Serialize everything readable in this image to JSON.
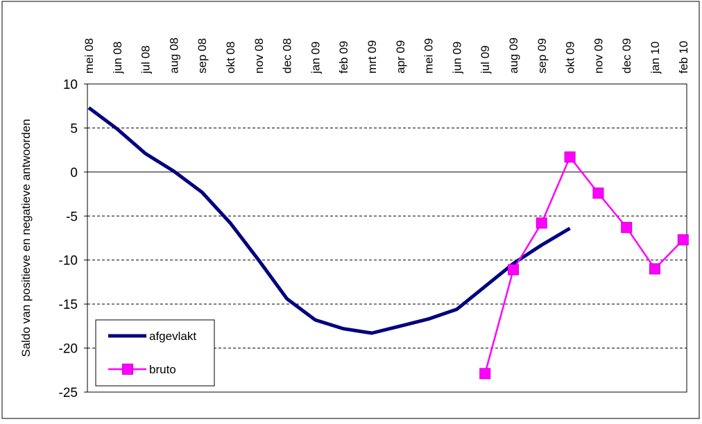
{
  "chart_data": {
    "type": "line",
    "title": "",
    "xlabel": "",
    "ylabel": "Saldo van positieve en negatieve antwoorden",
    "ylim": [
      -25,
      10
    ],
    "yticks": [
      10,
      5,
      0,
      -5,
      -10,
      -15,
      -20,
      -25
    ],
    "grid": "horizontal-dashed",
    "legend_position": "bottom-left",
    "categories": [
      "mei 08",
      "jun 08",
      "jul 08",
      "aug 08",
      "sep 08",
      "okt 08",
      "nov 08",
      "dec 08",
      "jan 09",
      "feb 09",
      "mrt 09",
      "apr 09",
      "mei 09",
      "jun 09",
      "jul 09",
      "aug 09",
      "sep 09",
      "okt 09",
      "nov 09",
      "dec 09",
      "jan 10",
      "feb 10"
    ],
    "series": [
      {
        "name": "afgevlakt",
        "color": "#000080",
        "marker": "none",
        "values": [
          7.3,
          4.9,
          2.1,
          0.1,
          -2.3,
          -5.8,
          -10.0,
          -14.4,
          -16.8,
          -17.8,
          -18.3,
          -17.5,
          -16.7,
          -15.6,
          -13.0,
          -10.4,
          -8.3,
          -6.4,
          null,
          null,
          null,
          null
        ]
      },
      {
        "name": "bruto",
        "color": "#FF00FF",
        "marker": "square",
        "values": [
          null,
          null,
          null,
          null,
          null,
          null,
          null,
          null,
          null,
          null,
          null,
          null,
          null,
          null,
          -22.9,
          -11.1,
          -5.8,
          1.7,
          -2.4,
          -6.3,
          -11.0,
          -7.7
        ]
      }
    ]
  }
}
